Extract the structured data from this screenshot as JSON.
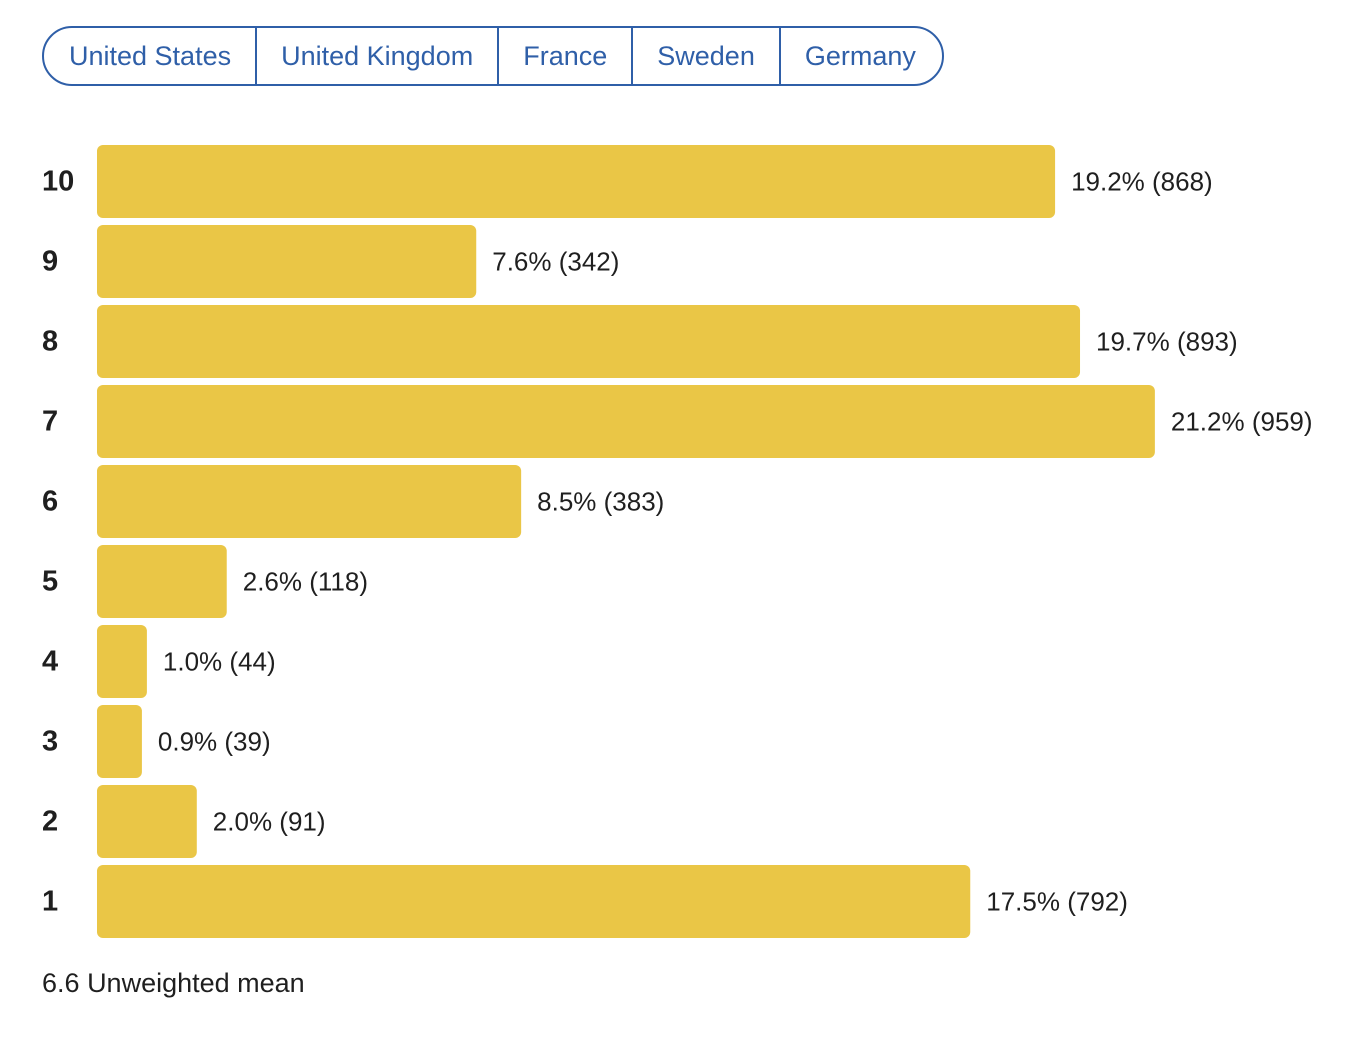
{
  "tabs": [
    "United States",
    "United Kingdom",
    "France",
    "Sweden",
    "Germany"
  ],
  "colors": {
    "bar": "#EAC646",
    "accent": "#2F5FA8",
    "text": "#1F1F1F"
  },
  "chart_data": {
    "type": "bar",
    "orientation": "horizontal",
    "categories": [
      "10",
      "9",
      "8",
      "7",
      "6",
      "5",
      "4",
      "3",
      "2",
      "1"
    ],
    "values": [
      19.2,
      7.6,
      19.7,
      21.2,
      8.5,
      2.6,
      1.0,
      0.9,
      2.0,
      17.5
    ],
    "counts": [
      868,
      342,
      893,
      959,
      383,
      118,
      44,
      39,
      91,
      792
    ],
    "data_labels": [
      "19.2% (868)",
      "7.6% (342)",
      "19.7% (893)",
      "21.2% (959)",
      "8.5% (383)",
      "2.6% (118)",
      "1.0% (44)",
      "0.9% (39)",
      "2.0% (91)",
      "17.5% (792)"
    ],
    "unit": "%",
    "title": "",
    "xlabel": "",
    "ylabel": "",
    "grid": false
  },
  "summary": {
    "mean_value": "6.6",
    "mean_label": "Unweighted mean"
  }
}
